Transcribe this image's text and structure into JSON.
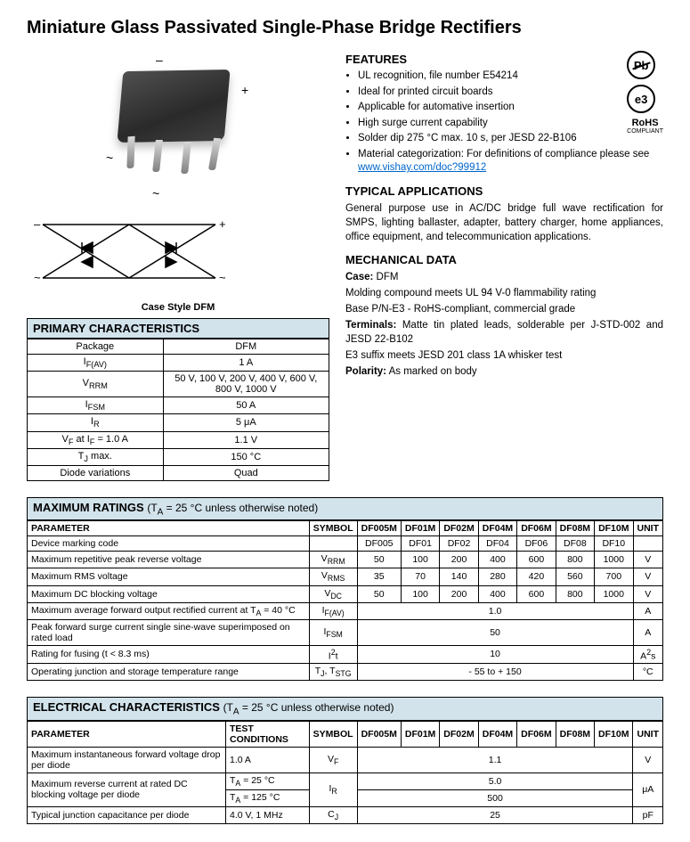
{
  "title": "Miniature Glass Passivated Single-Phase Bridge Rectifiers",
  "caseStyle": "Case Style DFM",
  "primary": {
    "header": "PRIMARY CHARACTERISTICS",
    "rows": [
      {
        "label": "Package",
        "value": "DFM"
      },
      {
        "label": "I<sub>F(AV)</sub>",
        "value": "1 A"
      },
      {
        "label": "V<sub>RRM</sub>",
        "value": "50 V, 100 V, 200 V, 400 V, 600 V, 800 V, 1000 V"
      },
      {
        "label": "I<sub>FSM</sub>",
        "value": "50 A"
      },
      {
        "label": "I<sub>R</sub>",
        "value": "5 μA"
      },
      {
        "label": "V<sub>F</sub> at I<sub>F</sub> = 1.0 A",
        "value": "1.1 V"
      },
      {
        "label": "T<sub>J</sub> max.",
        "value": "150 °C"
      },
      {
        "label": "Diode variations",
        "value": "Quad"
      }
    ]
  },
  "features": {
    "header": "FEATURES",
    "items": [
      "UL recognition, file number E54214",
      "Ideal for printed circuit boards",
      "Applicable for automative insertion",
      "High surge current capability",
      "Solder dip 275 °C max. 10 s, per JESD 22-B106",
      "Material categorization: For definitions of compliance please see "
    ],
    "link": "www.vishay.com/doc?99912"
  },
  "applications": {
    "header": "TYPICAL APPLICATIONS",
    "text": "General purpose use in AC/DC bridge full wave rectification for SMPS, lighting ballaster, adapter, battery charger, home appliances, office equipment, and telecommunication applications."
  },
  "mechanical": {
    "header": "MECHANICAL DATA",
    "lines": [
      {
        "b": "Case:",
        "t": " DFM"
      },
      {
        "b": "",
        "t": "Molding compound meets UL 94 V-0 flammability rating"
      },
      {
        "b": "",
        "t": "Base P/N-E3 - RoHS-compliant, commercial grade"
      },
      {
        "b": "Terminals:",
        "t": " Matte tin plated leads, solderable per J-STD-002 and JESD 22-B102"
      },
      {
        "b": "",
        "t": "E3 suffix meets JESD 201 class 1A whisker test"
      },
      {
        "b": "Polarity:",
        "t": " As marked on body"
      }
    ]
  },
  "badges": {
    "pb": "Pb",
    "e3": "e3",
    "rohs": "RoHS",
    "rohsSub": "COMPLIANT"
  },
  "maxRatings": {
    "header": "MAXIMUM RATINGS",
    "note": "(T<sub>A</sub> = 25 °C unless otherwise noted)",
    "cols": [
      "PARAMETER",
      "SYMBOL",
      "DF005M",
      "DF01M",
      "DF02M",
      "DF04M",
      "DF06M",
      "DF08M",
      "DF10M",
      "UNIT"
    ],
    "rows": [
      {
        "p": "Device marking code",
        "s": "",
        "v": [
          "DF005",
          "DF01",
          "DF02",
          "DF04",
          "DF06",
          "DF08",
          "DF10"
        ],
        "u": ""
      },
      {
        "p": "Maximum repetitive peak reverse voltage",
        "s": "V<sub>RRM</sub>",
        "v": [
          "50",
          "100",
          "200",
          "400",
          "600",
          "800",
          "1000"
        ],
        "u": "V"
      },
      {
        "p": "Maximum RMS voltage",
        "s": "V<sub>RMS</sub>",
        "v": [
          "35",
          "70",
          "140",
          "280",
          "420",
          "560",
          "700"
        ],
        "u": "V"
      },
      {
        "p": "Maximum DC blocking voltage",
        "s": "V<sub>DC</sub>",
        "v": [
          "50",
          "100",
          "200",
          "400",
          "600",
          "800",
          "1000"
        ],
        "u": "V"
      },
      {
        "p": "Maximum average forward output rectified current at T<sub>A</sub> = 40 °C",
        "s": "I<sub>F(AV)</sub>",
        "span": "1.0",
        "u": "A"
      },
      {
        "p": "Peak forward surge current single sine-wave superimposed on rated load",
        "s": "I<sub>FSM</sub>",
        "span": "50",
        "u": "A"
      },
      {
        "p": "Rating for fusing (t < 8.3 ms)",
        "s": "I<sup>2</sup>t",
        "span": "10",
        "u": "A<sup>2</sup>s"
      },
      {
        "p": "Operating junction and storage temperature range",
        "s": "T<sub>J</sub>, T<sub>STG</sub>",
        "span": "- 55 to + 150",
        "u": "°C"
      }
    ]
  },
  "elecChar": {
    "header": "ELECTRICAL CHARACTERISTICS",
    "note": "(T<sub>A</sub> = 25 °C unless otherwise noted)",
    "cols": [
      "PARAMETER",
      "TEST CONDITIONS",
      "SYMBOL",
      "DF005M",
      "DF01M",
      "DF02M",
      "DF04M",
      "DF06M",
      "DF08M",
      "DF10M",
      "UNIT"
    ],
    "rows": [
      {
        "p": "Maximum instantaneous forward voltage drop per diode",
        "tc": "1.0 A",
        "s": "V<sub>F</sub>",
        "span": "1.1",
        "u": "V"
      },
      {
        "p": "Maximum reverse current at rated DC blocking voltage per diode",
        "tc": [
          "T<sub>A</sub> = 25 °C",
          "T<sub>A</sub> = 125 °C"
        ],
        "s": "I<sub>R</sub>",
        "span": [
          "5.0",
          "500"
        ],
        "u": "μA"
      },
      {
        "p": "Typical junction capacitance per diode",
        "tc": "4.0 V, 1 MHz",
        "s": "C<sub>J</sub>",
        "span": "25",
        "u": "pF"
      }
    ]
  }
}
